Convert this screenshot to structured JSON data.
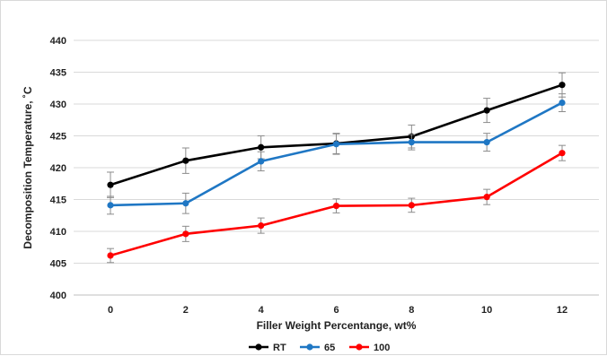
{
  "chart_data": {
    "type": "line",
    "title": "",
    "xlabel": "Filler Weight Percentange, wt%",
    "ylabel": "Decomposition Temperature, ˚C",
    "x": [
      0,
      2,
      4,
      6,
      8,
      10,
      12
    ],
    "ylim": [
      400,
      440
    ],
    "yticks": [
      400,
      405,
      410,
      415,
      420,
      425,
      430,
      435,
      440
    ],
    "grid": true,
    "legend_position": "bottom",
    "series": [
      {
        "name": "RT",
        "color": "#000000",
        "values": [
          417.3,
          421.1,
          423.2,
          423.8,
          424.9,
          429.0,
          433.0
        ],
        "errors": [
          2.0,
          2.0,
          1.8,
          1.6,
          1.8,
          1.9,
          1.9
        ]
      },
      {
        "name": "65",
        "color": "#1f77c4",
        "values": [
          414.1,
          414.4,
          421.0,
          423.7,
          424.0,
          424.0,
          430.2
        ],
        "errors": [
          1.4,
          1.6,
          1.5,
          1.6,
          1.2,
          1.4,
          1.4
        ]
      },
      {
        "name": "100",
        "color": "#ff0000",
        "values": [
          406.2,
          409.6,
          410.9,
          414.0,
          414.1,
          415.4,
          422.3
        ],
        "errors": [
          1.1,
          1.2,
          1.2,
          1.1,
          1.1,
          1.2,
          1.2
        ]
      }
    ]
  }
}
